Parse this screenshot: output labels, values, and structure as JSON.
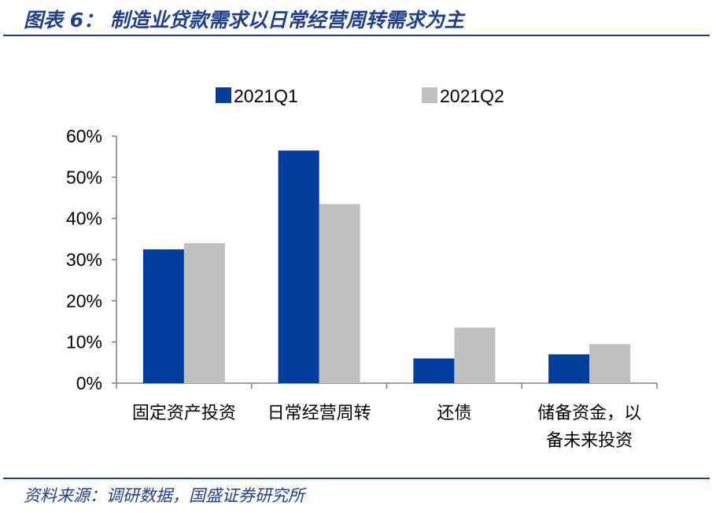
{
  "figure": {
    "title": "图表 6： 制造业贷款需求以日常经营周转需求为主",
    "source": "资料来源：调研数据，国盛证券研究所"
  },
  "colors": {
    "header_blue": "#1f3f8f",
    "series_q1": "#003d9c",
    "series_q2": "#c0c0c0",
    "axis": "#808080"
  },
  "chart_data": {
    "type": "bar",
    "categories": [
      [
        "固定资产投资"
      ],
      [
        "日常经营周转"
      ],
      [
        "还债"
      ],
      [
        "储备资金，以",
        "备未来投资"
      ]
    ],
    "series": [
      {
        "name": "2021Q1",
        "values": [
          32.5,
          56.5,
          6.0,
          7.0
        ]
      },
      {
        "name": "2021Q2",
        "values": [
          34.0,
          43.5,
          13.5,
          9.5
        ]
      }
    ],
    "y_ticks": [
      "0%",
      "10%",
      "20%",
      "30%",
      "40%",
      "50%",
      "60%"
    ],
    "ylim": [
      0,
      60
    ],
    "legend_position": "top-center",
    "grid": false
  }
}
